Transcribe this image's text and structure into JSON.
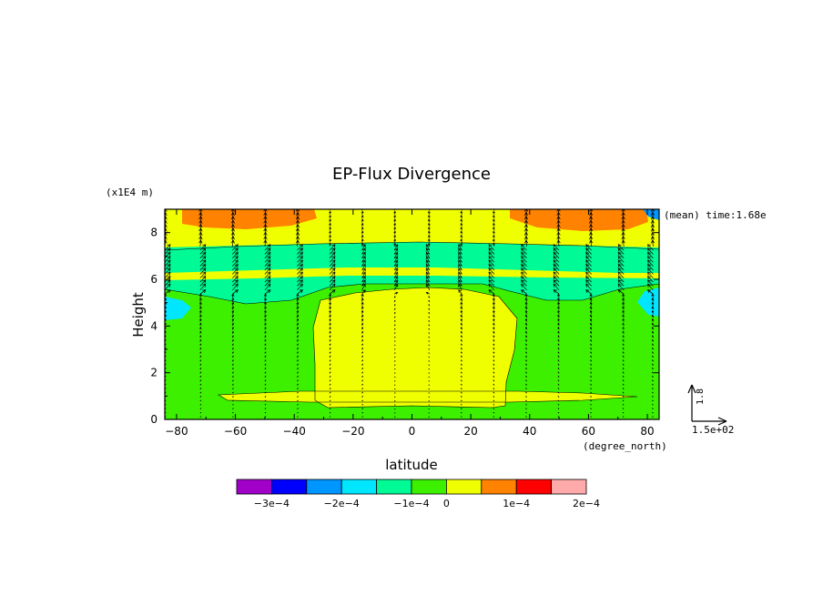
{
  "chart_data": {
    "type": "heatmap",
    "title": "EP-Flux Divergence",
    "xlabel": "latitude",
    "xunit": "(degree_north)",
    "ylabel": "Height",
    "yunit": "(x1E4 m)",
    "annotation": "(mean) time:1.68e",
    "xlim": [
      -84,
      84
    ],
    "ylim": [
      0,
      9
    ],
    "x_ticks": [
      -80,
      -60,
      -40,
      -20,
      0,
      20,
      40,
      60,
      80
    ],
    "x_tick_labels": [
      "-80",
      "-60",
      "-40",
      "-20",
      "0",
      "20",
      "40",
      "60",
      "80"
    ],
    "y_ticks": [
      0,
      2,
      4,
      6,
      8
    ],
    "y_tick_labels": [
      "0",
      "2",
      "4",
      "6",
      "8"
    ],
    "grid": false,
    "colorbar": {
      "levels": [
        -0.0003,
        -0.0002,
        -0.0001,
        0,
        0.0001,
        0.0002
      ],
      "level_labels": [
        "-3e-4",
        "-2e-4",
        "-1e-4",
        "0",
        "1e-4",
        "2e-4"
      ],
      "colors": [
        "#a000c8",
        "#0000ff",
        "#0096ff",
        "#00e6ff",
        "#00fa96",
        "#3cf000",
        "#f0ff00",
        "#ff8200",
        "#ff0000",
        "#ffaaaa"
      ]
    },
    "field_regions": [
      {
        "band": "upper layer (8.5-9)",
        "lat_range": [
          -70,
          -40
        ],
        "value_class": "1e-4 to 2e-4"
      },
      {
        "band": "upper layer (8.5-9)",
        "lat_range": [
          40,
          70
        ],
        "value_class": "1e-4 to 2e-4"
      },
      {
        "band": "7.3-8.5",
        "lat_range": [
          -84,
          84
        ],
        "value_class": "0 to 1e-4"
      },
      {
        "band": "5.5-7.3",
        "lat_range": [
          -84,
          84
        ],
        "value_class": "-1e-4 to 0"
      },
      {
        "band": "0-5.5",
        "lat_range": [
          -30,
          30
        ],
        "value_class": "0 to 1e-4"
      },
      {
        "band": "0-5.5",
        "lat_range": [
          -84,
          -30
        ],
        "value_class": "-0.5e-4 to 0"
      },
      {
        "band": "0-5.5",
        "lat_range": [
          30,
          84
        ],
        "value_class": "-0.5e-4 to 0"
      }
    ],
    "vector_columns_lat": [
      -84,
      -72,
      -61,
      -50,
      -39,
      -28,
      -17,
      -6,
      6,
      17,
      28,
      39,
      50,
      61,
      72,
      82
    ],
    "vector_reference": {
      "x_label": "1.5e+02",
      "y_label": "1.8"
    }
  }
}
